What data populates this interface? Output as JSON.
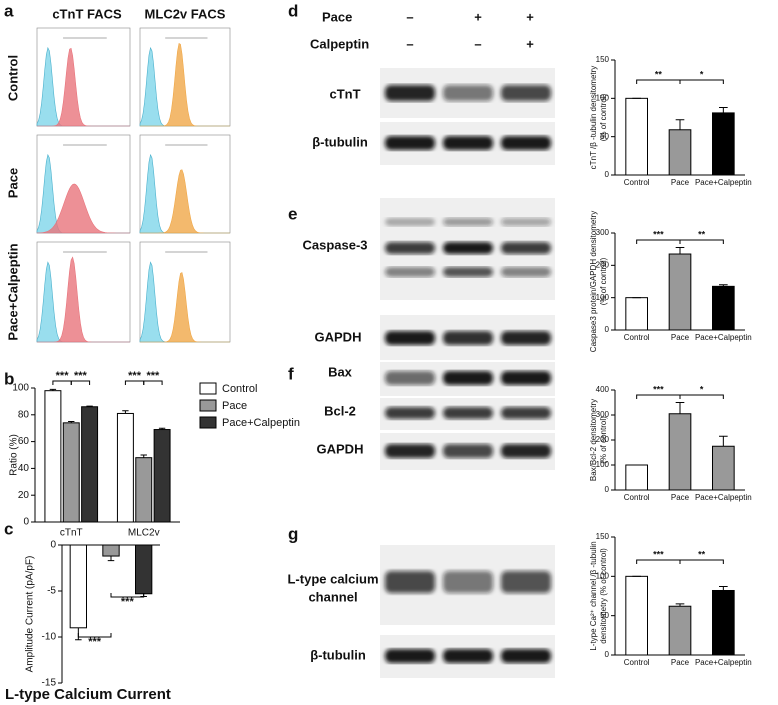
{
  "panel_letters": [
    "a",
    "b",
    "c",
    "d",
    "e",
    "f",
    "g"
  ],
  "facs": {
    "columns": [
      "cTnT FACS",
      "MLC2v FACS"
    ],
    "rows": [
      "Control",
      "Pace",
      "Pace+Calpeptin"
    ]
  },
  "treatments": [
    {
      "label": "Pace",
      "signs": [
        "–",
        "+",
        "+"
      ]
    },
    {
      "label": "Calpeptin",
      "signs": [
        "–",
        "–",
        "+"
      ]
    }
  ],
  "blots": {
    "d": [
      "cTnT",
      "β-tubulin"
    ],
    "e": [
      "Caspase-3",
      "GAPDH"
    ],
    "f": [
      "Bax",
      "Bcl-2",
      "GAPDH"
    ],
    "g": [
      [
        "L-type calcium",
        "channel"
      ],
      "β-tubulin"
    ]
  },
  "chart_data": [
    {
      "type": "bar",
      "categories": [
        "cTnT",
        "MLC2v"
      ],
      "ylabel": [
        "Ratio (%)"
      ],
      "series": [
        {
          "name": "Control",
          "color": "#ffffff",
          "values": [
            98,
            81
          ],
          "errors": [
            1,
            2
          ]
        },
        {
          "name": "Pace",
          "color": "#999999",
          "values": [
            74,
            48
          ],
          "errors": [
            1,
            2
          ]
        },
        {
          "name": "Pace+Calpeptin",
          "color": "#333333",
          "values": [
            86,
            69
          ],
          "errors": [
            0.5,
            1
          ]
        }
      ],
      "ylim": [
        0,
        100
      ],
      "yticks": [
        0,
        20,
        40,
        60,
        80,
        100
      ],
      "annotations": [
        "***",
        "***",
        "***",
        "***"
      ]
    },
    {
      "type": "bar",
      "title": "L-type Calcium Current",
      "categories": [
        null,
        null,
        null
      ],
      "ylabel": [
        "Amplitude Current (pA/pF)"
      ],
      "values": [
        -9,
        -1.2,
        -5.3
      ],
      "errors": [
        1.3,
        0.5,
        0.3
      ],
      "colors": [
        "#ffffff",
        "#999999",
        "#333333"
      ],
      "ylim": [
        -15,
        0
      ],
      "yticks": [
        0,
        -5,
        -10,
        -15
      ],
      "annotations": [
        "***",
        "***"
      ]
    },
    {
      "type": "bar",
      "categories": [
        "Control",
        "Pace",
        "Pace+Calpeptin"
      ],
      "ylabel": [
        "cTnT /β -tubulin densitometry",
        "(% of control)"
      ],
      "values": [
        100,
        59,
        81
      ],
      "errors": [
        0,
        13,
        7
      ],
      "colors": [
        "#ffffff",
        "#999999",
        "#000000"
      ],
      "ylim": [
        0,
        150
      ],
      "yticks": [
        0,
        50,
        100,
        150
      ],
      "annotations": [
        "**",
        "*"
      ]
    },
    {
      "type": "bar",
      "categories": [
        "Control",
        "Pace",
        "Pace+Calpeptin"
      ],
      "ylabel": [
        "Caspase3 protein/GAPDH densitometry",
        "(% of control)"
      ],
      "values": [
        100,
        235,
        135
      ],
      "errors": [
        0,
        20,
        5
      ],
      "colors": [
        "#ffffff",
        "#999999",
        "#000000"
      ],
      "ylim": [
        0,
        300
      ],
      "yticks": [
        0,
        100,
        200,
        300
      ],
      "annotations": [
        "***",
        "**"
      ]
    },
    {
      "type": "bar",
      "categories": [
        "Control",
        "Pace",
        "Pace+Calpeptin"
      ],
      "ylabel": [
        "Bax/Bcl-2 densitometry",
        "(% of control)"
      ],
      "values": [
        100,
        305,
        175
      ],
      "errors": [
        0,
        45,
        40
      ],
      "colors": [
        "#ffffff",
        "#999999",
        "#999999"
      ],
      "ylim": [
        0,
        400
      ],
      "yticks": [
        0,
        100,
        200,
        300,
        400
      ],
      "annotations": [
        "***",
        "*"
      ]
    },
    {
      "type": "bar",
      "categories": [
        "Control",
        "Pace",
        "Pace+Calpeptin"
      ],
      "ylabel": [
        "L-type Ca²⁺ channel /β -tubulin",
        "densitometry (% of control)"
      ],
      "values": [
        100,
        62,
        82
      ],
      "errors": [
        0,
        3,
        5
      ],
      "colors": [
        "#ffffff",
        "#999999",
        "#000000"
      ],
      "ylim": [
        0,
        150
      ],
      "yticks": [
        0,
        50,
        100,
        150
      ],
      "annotations": [
        "***",
        "**"
      ]
    }
  ]
}
